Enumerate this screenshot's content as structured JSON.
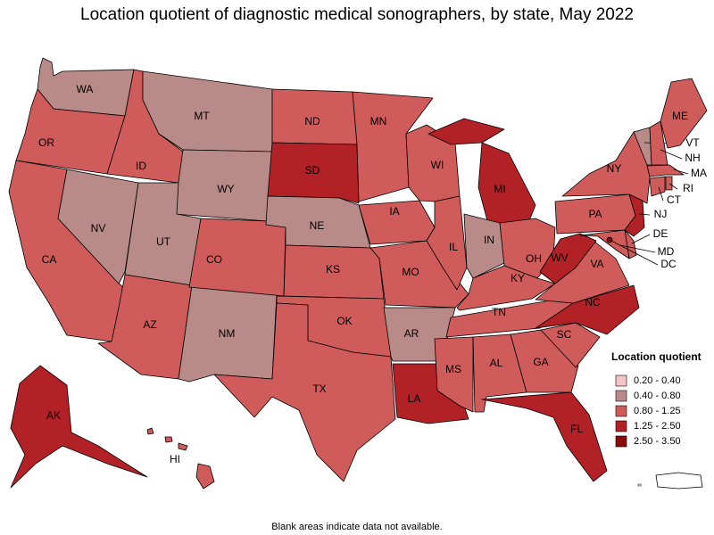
{
  "title": "Location quotient of diagnostic medical sonographers, by state, May 2022",
  "legend": {
    "title": "Location quotient",
    "items": [
      {
        "label": "0.20 - 0.40",
        "color": "#f6c4c4"
      },
      {
        "label": "0.40 - 0.80",
        "color": "#b98b88"
      },
      {
        "label": "0.80 - 1.25",
        "color": "#d05b5b"
      },
      {
        "label": "1.25 - 2.50",
        "color": "#b12126"
      },
      {
        "label": "2.50 - 3.50",
        "color": "#8a0a0a"
      }
    ]
  },
  "states": [
    {
      "abbr": "WA",
      "color": "#b98b88"
    },
    {
      "abbr": "OR",
      "color": "#d05b5b"
    },
    {
      "abbr": "CA",
      "color": "#d05b5b"
    },
    {
      "abbr": "NV",
      "color": "#b98b88"
    },
    {
      "abbr": "ID",
      "color": "#d05b5b"
    },
    {
      "abbr": "MT",
      "color": "#b98b88"
    },
    {
      "abbr": "WY",
      "color": "#b98b88"
    },
    {
      "abbr": "UT",
      "color": "#b98b88"
    },
    {
      "abbr": "AZ",
      "color": "#d05b5b"
    },
    {
      "abbr": "NM",
      "color": "#b98b88"
    },
    {
      "abbr": "CO",
      "color": "#d05b5b"
    },
    {
      "abbr": "ND",
      "color": "#d05b5b"
    },
    {
      "abbr": "SD",
      "color": "#b12126"
    },
    {
      "abbr": "NE",
      "color": "#b98b88"
    },
    {
      "abbr": "KS",
      "color": "#d05b5b"
    },
    {
      "abbr": "OK",
      "color": "#d05b5b"
    },
    {
      "abbr": "TX",
      "color": "#d05b5b"
    },
    {
      "abbr": "MN",
      "color": "#d05b5b"
    },
    {
      "abbr": "IA",
      "color": "#d05b5b"
    },
    {
      "abbr": "MO",
      "color": "#d05b5b"
    },
    {
      "abbr": "AR",
      "color": "#b98b88"
    },
    {
      "abbr": "LA",
      "color": "#b12126"
    },
    {
      "abbr": "WI",
      "color": "#d05b5b"
    },
    {
      "abbr": "IL",
      "color": "#d05b5b"
    },
    {
      "abbr": "MI",
      "color": "#b12126"
    },
    {
      "abbr": "IN",
      "color": "#b98b88"
    },
    {
      "abbr": "OH",
      "color": "#d05b5b"
    },
    {
      "abbr": "KY",
      "color": "#d05b5b"
    },
    {
      "abbr": "TN",
      "color": "#d05b5b"
    },
    {
      "abbr": "MS",
      "color": "#d05b5b"
    },
    {
      "abbr": "AL",
      "color": "#d05b5b"
    },
    {
      "abbr": "GA",
      "color": "#d05b5b"
    },
    {
      "abbr": "FL",
      "color": "#b12126"
    },
    {
      "abbr": "SC",
      "color": "#d05b5b"
    },
    {
      "abbr": "NC",
      "color": "#b12126"
    },
    {
      "abbr": "VA",
      "color": "#d05b5b"
    },
    {
      "abbr": "WV",
      "color": "#b12126"
    },
    {
      "abbr": "PA",
      "color": "#d05b5b"
    },
    {
      "abbr": "NY",
      "color": "#d05b5b"
    },
    {
      "abbr": "VT",
      "color": "#b98b88"
    },
    {
      "abbr": "NH",
      "color": "#d05b5b"
    },
    {
      "abbr": "ME",
      "color": "#d05b5b"
    },
    {
      "abbr": "MA",
      "color": "#d05b5b"
    },
    {
      "abbr": "RI",
      "color": "#d05b5b"
    },
    {
      "abbr": "CT",
      "color": "#d05b5b"
    },
    {
      "abbr": "NJ",
      "color": "#b12126"
    },
    {
      "abbr": "DE",
      "color": "#d05b5b"
    },
    {
      "abbr": "MD",
      "color": "#d05b5b"
    },
    {
      "abbr": "DC",
      "color": "#8a0a0a"
    },
    {
      "abbr": "AK",
      "color": "#b12126"
    },
    {
      "abbr": "HI",
      "color": "#d05b5b"
    }
  ],
  "footnote": "Blank areas indicate data not available."
}
